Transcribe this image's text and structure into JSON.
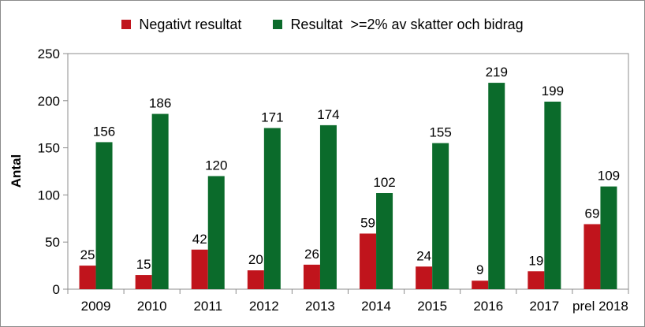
{
  "chart_data": {
    "type": "bar",
    "categories": [
      "2009",
      "2010",
      "2011",
      "2012",
      "2013",
      "2014",
      "2015",
      "2016",
      "2017",
      "prel 2018"
    ],
    "series": [
      {
        "name": "Negativt resultat",
        "color": "#c0141c",
        "values": [
          25,
          15,
          42,
          20,
          26,
          59,
          24,
          9,
          19,
          69
        ]
      },
      {
        "name": "Resultat  >=2% av skatter och bidrag",
        "color": "#0b6b2b",
        "values": [
          156,
          186,
          120,
          171,
          174,
          102,
          155,
          219,
          199,
          109
        ]
      }
    ],
    "title": "",
    "xlabel": "",
    "ylabel": "Antal",
    "ylim": [
      0,
      250
    ],
    "yticks": [
      0,
      50,
      100,
      150,
      200,
      250
    ],
    "grid": false,
    "legend": "top"
  }
}
